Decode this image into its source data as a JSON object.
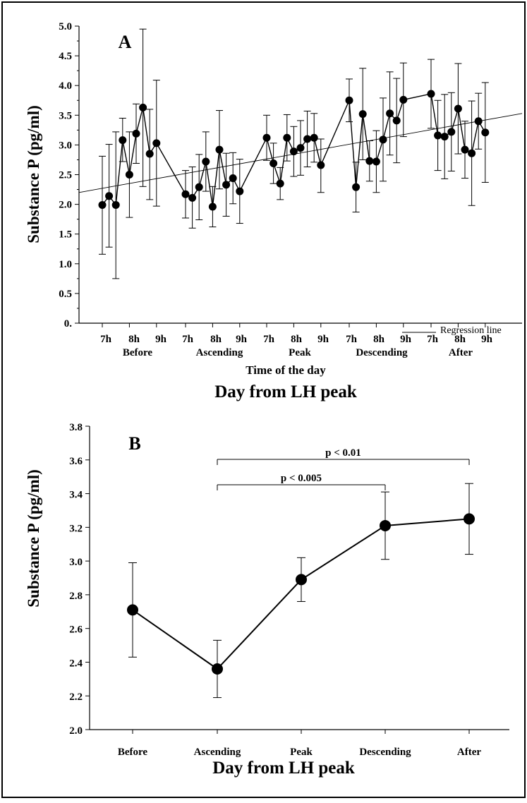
{
  "chart_data": [
    {
      "type": "line",
      "panel_label": "A",
      "ylabel": "Substance P (pg/ml)",
      "ylim": [
        0,
        5
      ],
      "yticks": [
        "0.",
        "0.5",
        "1.0",
        "1.5",
        "2.0",
        "2.5",
        "3.0",
        "3.5",
        "4.0",
        "4.5",
        "5.0"
      ],
      "xlabel": "Time of the day",
      "xlabel2": "Day from LH peak",
      "hour_ticks": [
        "7h",
        "8h",
        "9h"
      ],
      "groups": [
        "Before",
        "Ascending",
        "Peak",
        "Descending",
        "After"
      ],
      "legend": "Regression line",
      "legend_position": "bottom-right",
      "regression": {
        "start": 2.2,
        "end": 3.53
      },
      "series": [
        {
          "values": [
            1.99,
            2.14,
            1.99,
            3.08,
            2.5,
            3.19,
            3.63,
            2.85,
            3.03
          ],
          "err_high": [
            2.81,
            3.01,
            3.22,
            3.45,
            3.22,
            3.69,
            4.95,
            3.6,
            4.09
          ],
          "err_low": [
            1.16,
            1.28,
            0.75,
            2.72,
            1.78,
            2.69,
            2.3,
            2.08,
            1.97
          ]
        },
        {
          "values": [
            2.17,
            2.11,
            2.29,
            2.72,
            1.96,
            2.92,
            2.33,
            2.44,
            2.22
          ],
          "err_high": [
            2.57,
            2.63,
            2.84,
            3.22,
            2.3,
            3.58,
            2.86,
            2.87,
            2.76
          ],
          "err_low": [
            1.77,
            1.6,
            1.74,
            2.22,
            1.62,
            2.26,
            1.8,
            2.01,
            1.68
          ]
        },
        {
          "values": [
            3.12,
            2.69,
            2.35,
            3.12,
            2.89,
            2.95,
            3.1,
            3.12,
            2.66
          ],
          "err_high": [
            3.5,
            3.03,
            2.62,
            3.51,
            3.31,
            3.41,
            3.57,
            3.53,
            3.1
          ],
          "err_low": [
            2.74,
            2.35,
            2.08,
            2.73,
            2.47,
            2.49,
            2.63,
            2.71,
            2.2
          ]
        },
        {
          "values": [
            3.75,
            2.29,
            3.52,
            2.73,
            2.72,
            3.09,
            3.53,
            3.41,
            3.76
          ],
          "err_high": [
            4.11,
            2.71,
            4.29,
            3.07,
            3.24,
            3.79,
            4.23,
            4.12,
            4.38
          ],
          "err_low": [
            3.39,
            1.87,
            2.75,
            2.39,
            2.2,
            2.39,
            2.83,
            2.7,
            3.14
          ]
        },
        {
          "values": [
            3.86,
            3.16,
            3.14,
            3.22,
            3.61,
            2.92,
            2.86,
            3.4,
            3.21
          ],
          "err_high": [
            4.44,
            3.75,
            3.85,
            3.88,
            4.37,
            3.4,
            3.74,
            3.87,
            4.05
          ],
          "err_low": [
            3.28,
            2.57,
            2.43,
            2.56,
            2.85,
            2.44,
            1.98,
            2.93,
            2.37
          ]
        }
      ]
    },
    {
      "type": "line",
      "panel_label": "B",
      "ylabel": "Substance P (pg/ml)",
      "ylim": [
        2.0,
        3.8
      ],
      "yticks": [
        "2.0",
        "2.2",
        "2.4",
        "2.6",
        "2.8",
        "3.0",
        "3.2",
        "3.4",
        "3.6",
        "3.8"
      ],
      "xlabel": "Day from LH peak",
      "categories": [
        "Before",
        "Ascending",
        "Peak",
        "Descending",
        "After"
      ],
      "values": [
        2.71,
        2.36,
        2.89,
        3.21,
        3.25
      ],
      "err_high": [
        2.99,
        2.53,
        3.02,
        3.41,
        3.46
      ],
      "err_low": [
        2.43,
        2.19,
        2.76,
        3.01,
        3.04
      ],
      "annotations": [
        {
          "text": "p < 0.01",
          "from": "Ascending",
          "to": "After"
        },
        {
          "text": "p < 0.005",
          "from": "Ascending",
          "to": "Descending"
        }
      ]
    }
  ]
}
